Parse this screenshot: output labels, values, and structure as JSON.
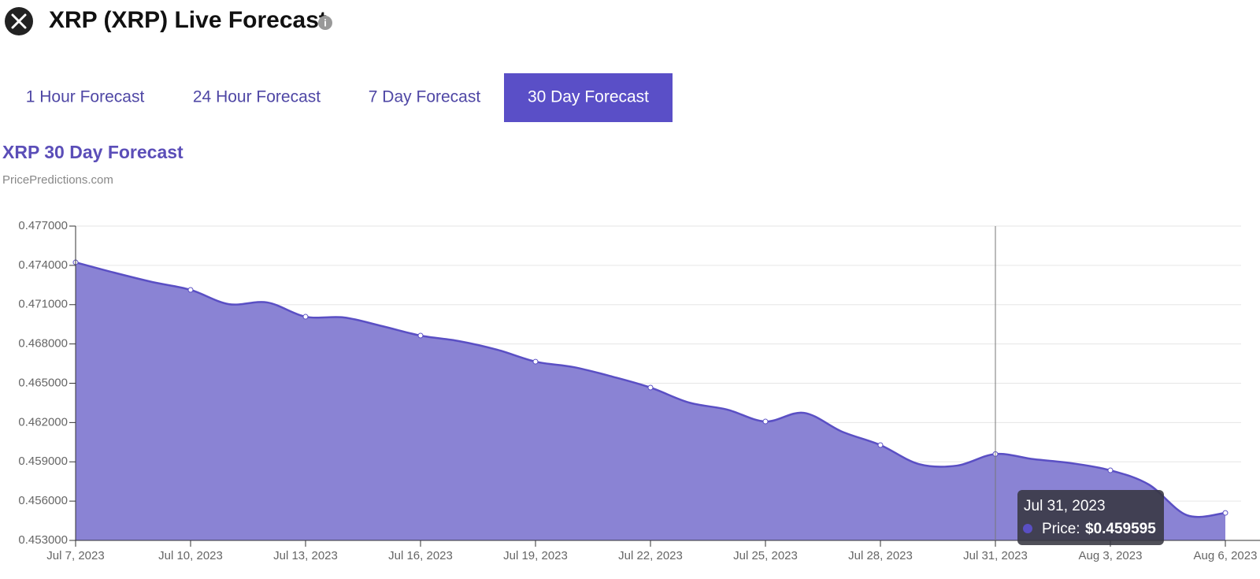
{
  "header": {
    "title": "XRP (XRP) Live Forecast"
  },
  "tabs": {
    "labels": [
      "1 Hour Forecast",
      "24 Hour Forecast",
      "7 Day Forecast",
      "30 Day Forecast"
    ],
    "active": 3
  },
  "tooltip": {
    "title": "Jul 31, 2023",
    "series_label": "Price:",
    "value_label": "$0.459595"
  },
  "chart_data": {
    "type": "area",
    "title": "XRP 30 Day Forecast",
    "subtitle": "PricePredictions.com",
    "x": [
      "2023-07-07",
      "2023-07-08",
      "2023-07-09",
      "2023-07-10",
      "2023-07-11",
      "2023-07-12",
      "2023-07-13",
      "2023-07-14",
      "2023-07-15",
      "2023-07-16",
      "2023-07-17",
      "2023-07-18",
      "2023-07-19",
      "2023-07-20",
      "2023-07-21",
      "2023-07-22",
      "2023-07-23",
      "2023-07-24",
      "2023-07-25",
      "2023-07-26",
      "2023-07-27",
      "2023-07-28",
      "2023-07-29",
      "2023-07-30",
      "2023-07-31",
      "2023-08-01",
      "2023-08-02",
      "2023-08-03",
      "2023-08-04",
      "2023-08-05",
      "2023-08-06"
    ],
    "series": [
      {
        "name": "Price",
        "color": "#5a4fc4",
        "fill": "#8a83d4",
        "values": [
          0.47423,
          0.47345,
          0.47273,
          0.47213,
          0.47104,
          0.47117,
          0.47008,
          0.47002,
          0.46936,
          0.46864,
          0.46822,
          0.46756,
          0.46665,
          0.46623,
          0.46551,
          0.46467,
          0.46353,
          0.46299,
          0.46208,
          0.46274,
          0.4613,
          0.46028,
          0.45883,
          0.45871,
          0.459595,
          0.4592,
          0.45889,
          0.45835,
          0.45727,
          0.45492,
          0.4551
        ]
      }
    ],
    "xlim": [
      "2023-07-07",
      "2023-08-06"
    ],
    "xticks": [
      {
        "value": "2023-07-07",
        "label": "Jul 7, 2023"
      },
      {
        "value": "2023-07-10",
        "label": "Jul 10, 2023"
      },
      {
        "value": "2023-07-13",
        "label": "Jul 13, 2023"
      },
      {
        "value": "2023-07-16",
        "label": "Jul 16, 2023"
      },
      {
        "value": "2023-07-19",
        "label": "Jul 19, 2023"
      },
      {
        "value": "2023-07-22",
        "label": "Jul 22, 2023"
      },
      {
        "value": "2023-07-25",
        "label": "Jul 25, 2023"
      },
      {
        "value": "2023-07-28",
        "label": "Jul 28, 2023"
      },
      {
        "value": "2023-07-31",
        "label": "Jul 31, 2023"
      },
      {
        "value": "2023-08-03",
        "label": "Aug 3, 2023"
      },
      {
        "value": "2023-08-06",
        "label": "Aug 6, 2023"
      }
    ],
    "ylim": [
      0.453,
      0.477
    ],
    "yticks": [
      {
        "value": 0.453,
        "label": "0.453000"
      },
      {
        "value": 0.456,
        "label": "0.456000"
      },
      {
        "value": 0.459,
        "label": "0.459000"
      },
      {
        "value": 0.462,
        "label": "0.462000"
      },
      {
        "value": 0.465,
        "label": "0.465000"
      },
      {
        "value": 0.468,
        "label": "0.468000"
      },
      {
        "value": 0.471,
        "label": "0.471000"
      },
      {
        "value": 0.474,
        "label": "0.474000"
      },
      {
        "value": 0.477,
        "label": "0.477000"
      }
    ],
    "grid": true
  }
}
